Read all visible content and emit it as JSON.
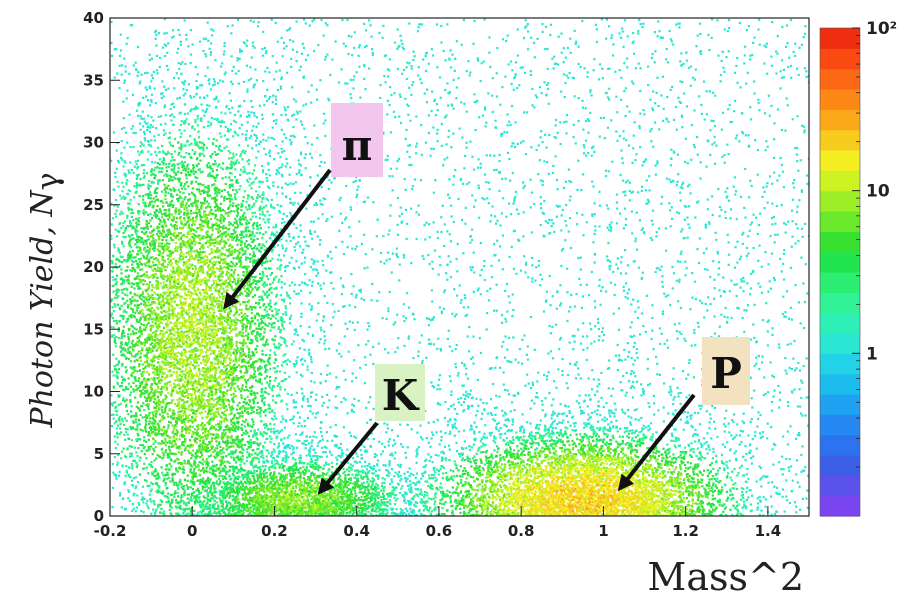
{
  "chart_data": {
    "type": "heatmap",
    "title": "",
    "xlabel": "Mass^2",
    "ylabel": "Photon Yield, N",
    "ylabel_symbol": "γ",
    "xlim": [
      -0.2,
      1.5
    ],
    "ylim": [
      0,
      40
    ],
    "x_ticks": [
      "-0.2",
      "0",
      "0.2",
      "0.4",
      "0.6",
      "0.8",
      "1",
      "1.2",
      "1.4"
    ],
    "y_ticks": [
      "0",
      "5",
      "10",
      "15",
      "20",
      "25",
      "30",
      "35",
      "40"
    ],
    "z_scale": "log",
    "z_ticks": [
      "1",
      "10",
      "10²"
    ],
    "z_range": [
      0.1,
      100
    ],
    "colorbar_colors": [
      "#7a45f0",
      "#5a52ea",
      "#3d5fe6",
      "#2d72ee",
      "#2688f2",
      "#20a2f2",
      "#1cbcee",
      "#22d2e6",
      "#2ae6d2",
      "#2ef0b6",
      "#32f296",
      "#2cee72",
      "#22e44e",
      "#38e030",
      "#6ae82a",
      "#9cef26",
      "#ccf224",
      "#f2ee22",
      "#f8cc1e",
      "#fba81a",
      "#fd8816",
      "#fd6814",
      "#f94a12",
      "#f02e10"
    ],
    "clusters": [
      {
        "label": "π",
        "center": [
          0.0,
          15
        ],
        "spread": [
          0.12,
          9
        ],
        "peak_count": 10
      },
      {
        "label": "K",
        "center": [
          0.25,
          1.5
        ],
        "spread": [
          0.14,
          1.8
        ],
        "peak_count": 8
      },
      {
        "label": "P",
        "center": [
          0.95,
          1.5
        ],
        "spread": [
          0.18,
          2.5
        ],
        "peak_count": 20
      }
    ],
    "annotations": [
      {
        "text": "π",
        "box_color": "#f2c6ee",
        "arrow_to": [
          0.08,
          16.8
        ]
      },
      {
        "text": "K",
        "box_color": "#d9f2c4",
        "arrow_to": [
          0.31,
          1.9
        ]
      },
      {
        "text": "P",
        "box_color": "#f3e2c0",
        "arrow_to": [
          1.04,
          2.2
        ]
      }
    ]
  }
}
